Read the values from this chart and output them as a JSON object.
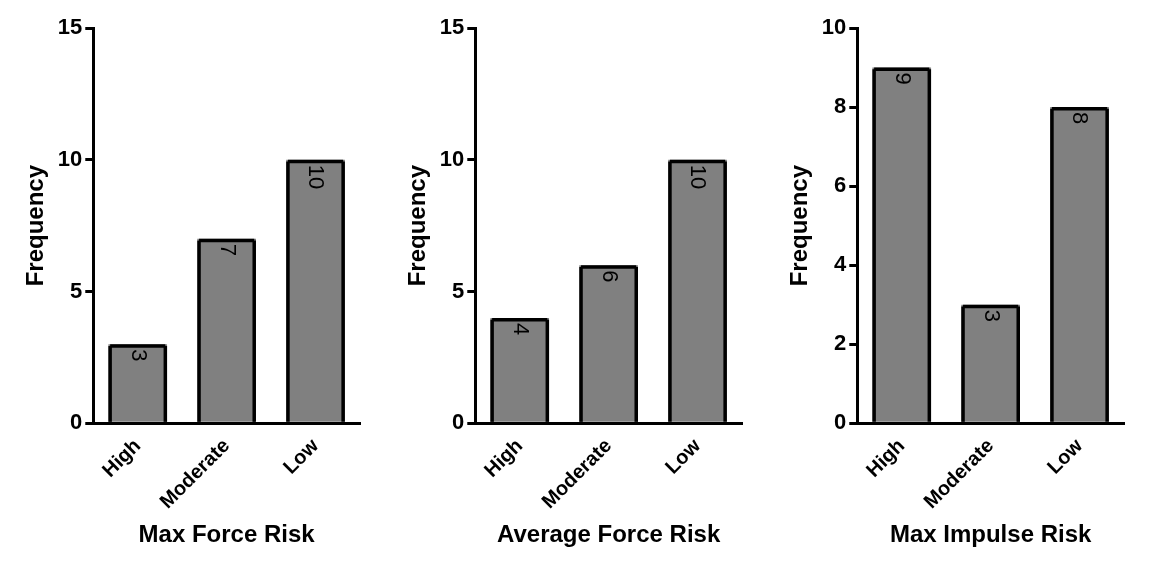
{
  "chart_data": [
    {
      "type": "bar",
      "categories": [
        "High",
        "Moderate",
        "Low"
      ],
      "values": [
        3,
        7,
        10
      ],
      "color": "#808080",
      "xlabel": "Max Force Risk",
      "ylabel": "Frequency",
      "ylim": [
        0,
        15
      ],
      "yticks": [
        0,
        5,
        10,
        15
      ],
      "data_labels": true
    },
    {
      "type": "bar",
      "categories": [
        "High",
        "Moderate",
        "Low"
      ],
      "values": [
        4,
        6,
        10
      ],
      "color": "#808080",
      "xlabel": "Average Force Risk",
      "ylabel": "Frequency",
      "ylim": [
        0,
        15
      ],
      "yticks": [
        0,
        5,
        10,
        15
      ],
      "data_labels": true
    },
    {
      "type": "bar",
      "categories": [
        "High",
        "Moderate",
        "Low"
      ],
      "values": [
        9,
        3,
        8
      ],
      "color": "#808080",
      "xlabel": "Max Impulse Risk",
      "ylabel": "Frequency",
      "ylim": [
        0,
        10
      ],
      "yticks": [
        0,
        2,
        4,
        6,
        8,
        10
      ],
      "data_labels": true
    }
  ]
}
